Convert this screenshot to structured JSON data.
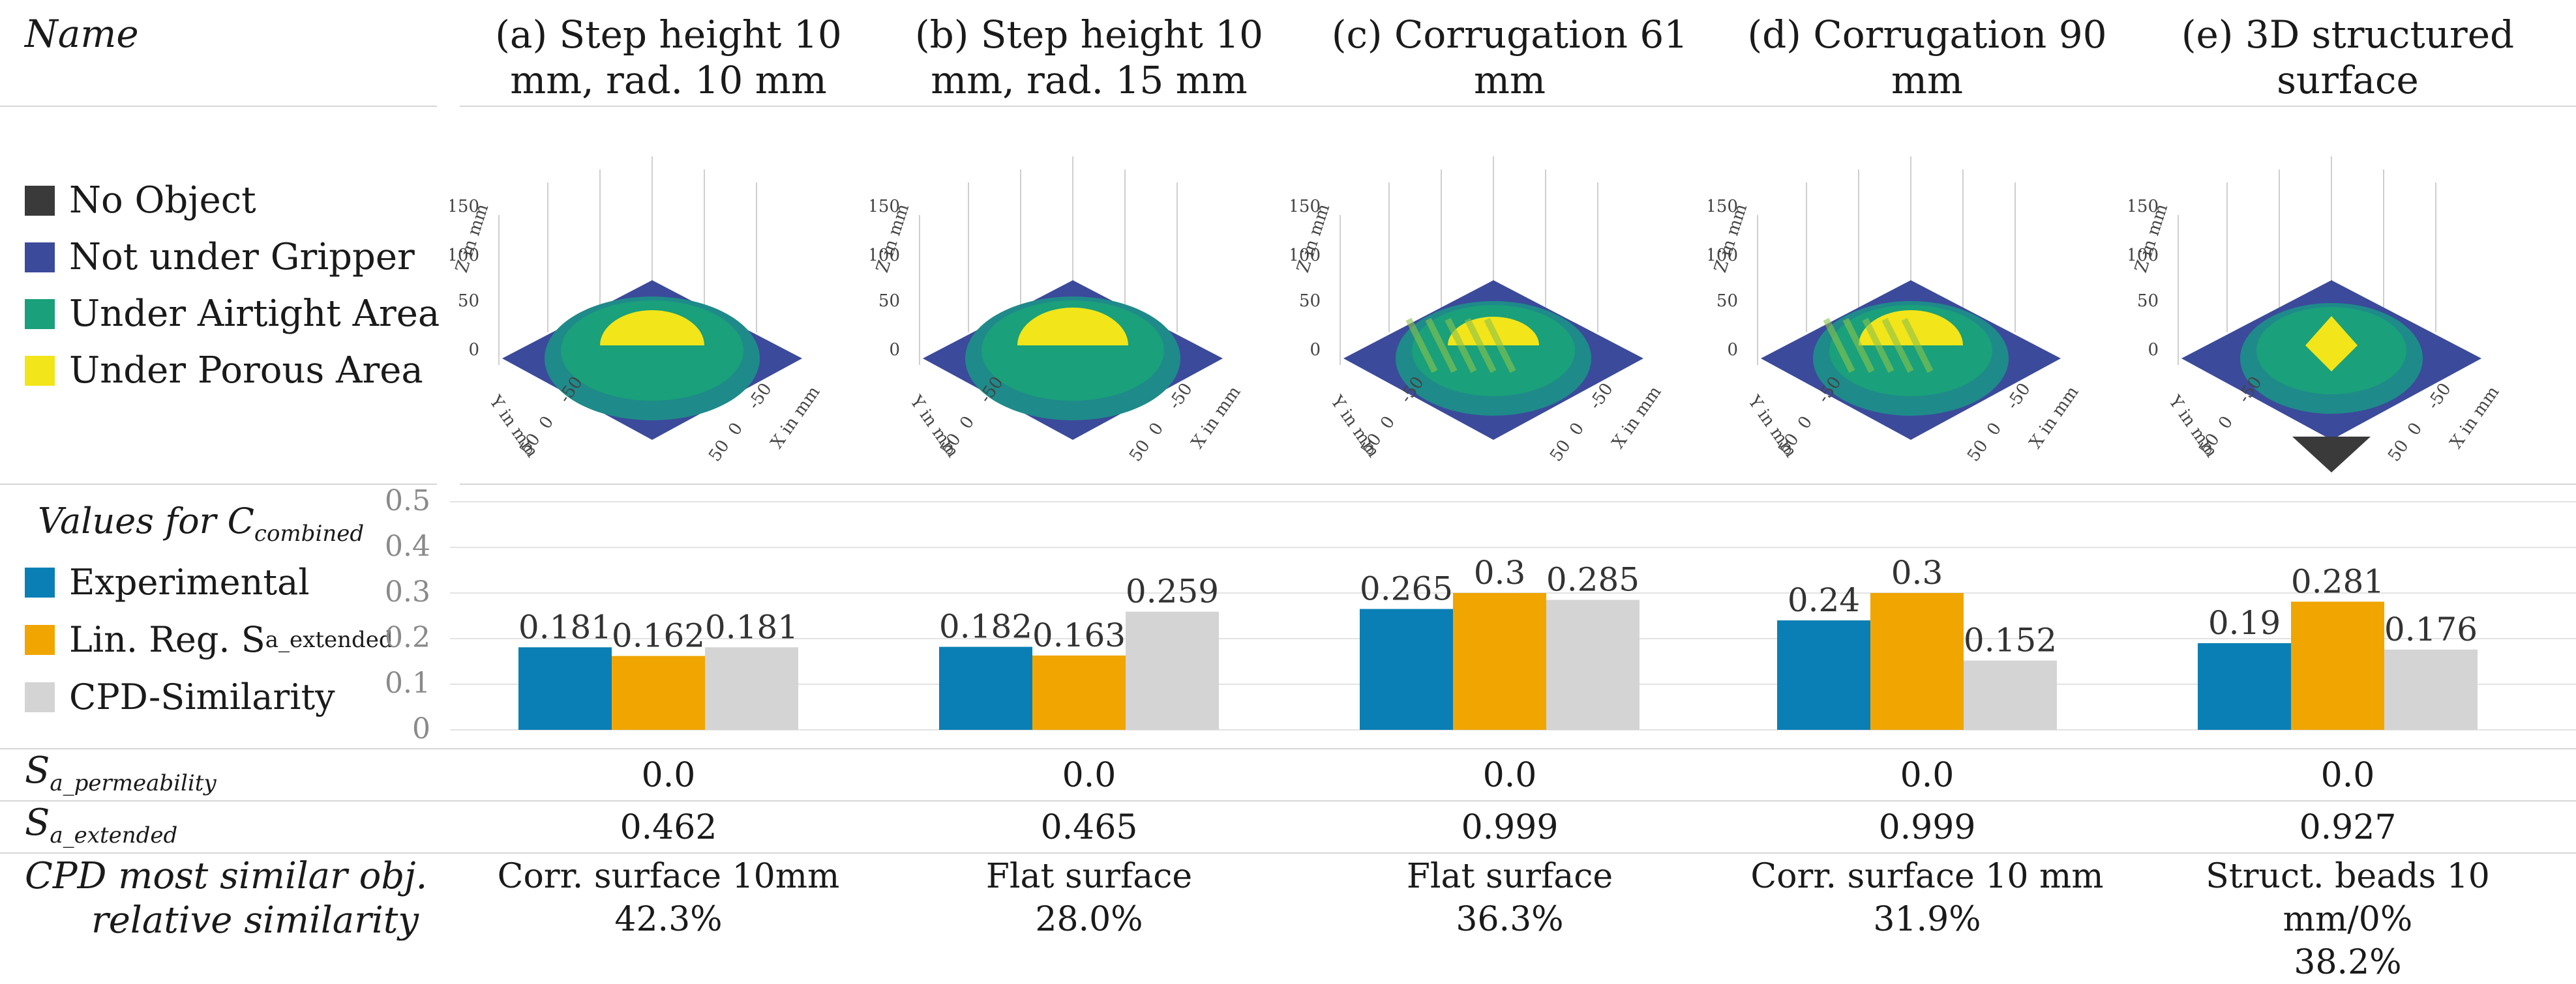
{
  "header": {
    "name_label": "Name",
    "columns": [
      "(a) Step height 10 mm, rad. 10 mm",
      "(b) Step height 10 mm, rad. 15 mm",
      "(c) Corrugation 61 mm",
      "(d) Corrugation 90 mm",
      "(e) 3D structured surface"
    ]
  },
  "surface_legend": [
    {
      "label": "No Object",
      "color": "#3a3a3a"
    },
    {
      "label": "Not under Gripper",
      "color": "#3b4a9a"
    },
    {
      "label": "Under Airtight Area",
      "color": "#1aa07a"
    },
    {
      "label": "Under Porous Area",
      "color": "#f2e51a"
    }
  ],
  "surface_axes": {
    "z_label": "Z in mm",
    "y_label": "Y in mm",
    "x_label": "X in mm",
    "z_ticks": [
      "150",
      "100",
      "50",
      "0"
    ],
    "y_ticks": [
      "-50",
      "0",
      "50"
    ],
    "x_ticks": [
      "-50",
      "0",
      "50"
    ]
  },
  "chart_data": {
    "type": "bar",
    "title_main": "Values for C",
    "title_sub": "combined",
    "categories": [
      "(a) Step height 10 mm, rad. 10 mm",
      "(b) Step height 10 mm, rad. 15 mm",
      "(c) Corrugation 61 mm",
      "(d) Corrugation 90 mm",
      "(e) 3D structured surface"
    ],
    "series": [
      {
        "name": "Experimental",
        "color": "#0a7fb5",
        "values": [
          0.181,
          0.182,
          0.265,
          0.24,
          0.19
        ]
      },
      {
        "name": "Lin. Reg. S",
        "name_sub": "a_extended",
        "color": "#f0a500",
        "values": [
          0.162,
          0.163,
          0.3,
          0.3,
          0.281
        ]
      },
      {
        "name": "CPD-Similarity",
        "color": "#d4d4d4",
        "values": [
          0.181,
          0.259,
          0.285,
          0.152,
          0.176
        ]
      }
    ],
    "ylim": [
      0,
      0.5
    ],
    "yticks": [
      "0",
      "0.1",
      "0.2",
      "0.3",
      "0.4",
      "0.5"
    ],
    "grid": true
  },
  "rows": {
    "permeability": {
      "label_main": "S",
      "label_sub": "a_permeability",
      "values": [
        "0.0",
        "0.0",
        "0.0",
        "0.0",
        "0.0"
      ]
    },
    "extended": {
      "label_main": "S",
      "label_sub": "a_extended",
      "values": [
        "0.462",
        "0.465",
        "0.999",
        "0.999",
        "0.927"
      ]
    },
    "cpd": {
      "label_line1": "CPD most similar obj.",
      "label_line2": "relative similarity",
      "objects": [
        "Corr. surface 10mm",
        "Flat surface",
        "Flat surface",
        "Corr. surface 10 mm",
        "Struct. beads 10 mm/0%"
      ],
      "similarities": [
        "42.3%",
        "28.0%",
        "36.3%",
        "31.9%",
        "38.2%"
      ]
    }
  }
}
